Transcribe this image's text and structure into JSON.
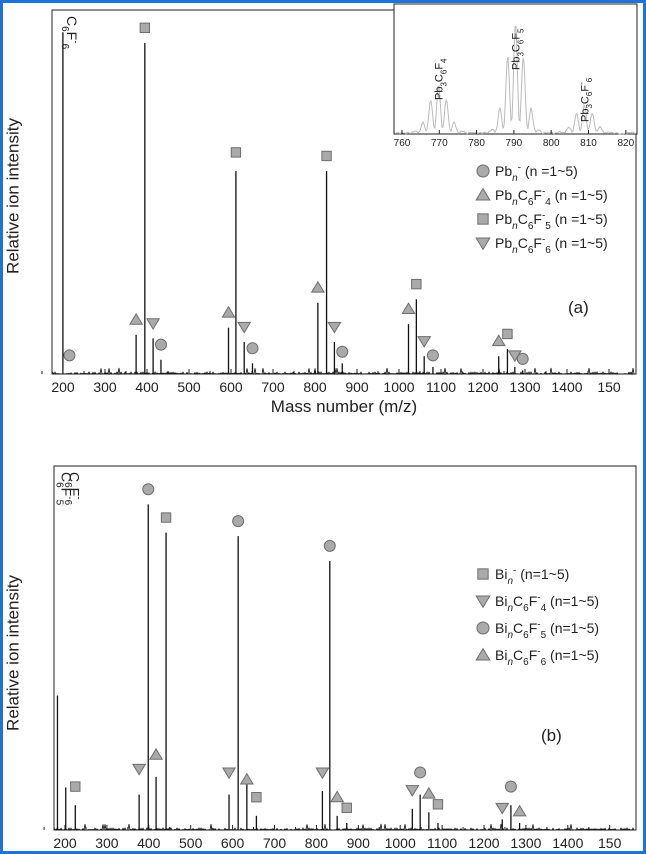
{
  "colors": {
    "border": "#1e73d8",
    "axis": "#222222",
    "line": "#111111",
    "marker_fill": "#aaaaaa",
    "marker_stroke": "#6e6e6e",
    "inset_line": "#bbbbbb"
  },
  "chart_data": [
    {
      "type": "line",
      "panel_label": "(a)",
      "xlabel": "Mass number (m/z)",
      "ylabel": "Relative ion intensity",
      "xlim": [
        160,
        1500
      ],
      "ylim": [
        0,
        100
      ],
      "x_ticks": [
        "200",
        "300",
        "400",
        "500",
        "600",
        "700",
        "800",
        "900",
        "1000",
        "1100",
        "1200",
        "1300",
        "1400",
        "150"
      ],
      "peaks": [
        {
          "x": 185,
          "y": 96
        },
        {
          "x": 353,
          "y": 11
        },
        {
          "x": 373,
          "y": 93
        },
        {
          "x": 392,
          "y": 10
        },
        {
          "x": 410,
          "y": 4
        },
        {
          "x": 565,
          "y": 13
        },
        {
          "x": 582,
          "y": 57
        },
        {
          "x": 601,
          "y": 9
        },
        {
          "x": 620,
          "y": 3
        },
        {
          "x": 770,
          "y": 20
        },
        {
          "x": 790,
          "y": 57
        },
        {
          "x": 808,
          "y": 9
        },
        {
          "x": 826,
          "y": 3
        },
        {
          "x": 978,
          "y": 14
        },
        {
          "x": 996,
          "y": 21
        },
        {
          "x": 1014,
          "y": 5
        },
        {
          "x": 1034,
          "y": 2
        },
        {
          "x": 1185,
          "y": 5
        },
        {
          "x": 1205,
          "y": 7
        },
        {
          "x": 1222,
          "y": 2
        },
        {
          "x": 1240,
          "y": 1
        }
      ],
      "peak_labels": [
        {
          "x": 185,
          "text_main": "C",
          "sub1": "6",
          "text_mid": "F",
          "sup": "-",
          "sub2": "6"
        }
      ],
      "markers": [
        {
          "series": "Pbn",
          "x": 200,
          "y": 3
        },
        {
          "series": "PbnC6F4",
          "x": 353,
          "y": 13
        },
        {
          "series": "PbnC6F6",
          "x": 392,
          "y": 12
        },
        {
          "series": "Pbn",
          "x": 410,
          "y": 6
        },
        {
          "series": "PbnC6F5",
          "x": 373,
          "y": 95
        },
        {
          "series": "PbnC6F4",
          "x": 565,
          "y": 15
        },
        {
          "series": "PbnC6F5",
          "x": 582,
          "y": 60
        },
        {
          "series": "PbnC6F6",
          "x": 601,
          "y": 11
        },
        {
          "series": "Pbn",
          "x": 620,
          "y": 5
        },
        {
          "series": "PbnC6F4",
          "x": 770,
          "y": 22
        },
        {
          "series": "PbnC6F5",
          "x": 790,
          "y": 59
        },
        {
          "series": "PbnC6F6",
          "x": 808,
          "y": 11
        },
        {
          "series": "Pbn",
          "x": 826,
          "y": 4
        },
        {
          "series": "PbnC6F4",
          "x": 978,
          "y": 16
        },
        {
          "series": "PbnC6F5",
          "x": 996,
          "y": 23
        },
        {
          "series": "PbnC6F6",
          "x": 1014,
          "y": 7
        },
        {
          "series": "Pbn",
          "x": 1034,
          "y": 3
        },
        {
          "series": "PbnC6F4",
          "x": 1185,
          "y": 7
        },
        {
          "series": "PbnC6F5",
          "x": 1205,
          "y": 9
        },
        {
          "series": "PbnC6F6",
          "x": 1222,
          "y": 3
        },
        {
          "series": "Pbn",
          "x": 1240,
          "y": 2
        }
      ],
      "legend": [
        {
          "key": "Pbn",
          "shape": "circle",
          "base": "Pb",
          "sub": "n",
          "sup": "-",
          "mid": "",
          "sub2": "",
          "mid2": "",
          "sub3": "",
          "sup2": "",
          "range": "(n =1~5)"
        },
        {
          "key": "PbnC6F4",
          "shape": "triangle-up",
          "base": "Pb",
          "sub": "n",
          "sup": "",
          "mid": "C",
          "sub2": "6",
          "mid2": "F",
          "sub3": "4",
          "sup2": "-",
          "range": "(n =1~5)"
        },
        {
          "key": "PbnC6F5",
          "shape": "square",
          "base": "Pb",
          "sub": "n",
          "sup": "",
          "mid": "C",
          "sub2": "6",
          "mid2": "F",
          "sub3": "5",
          "sup2": "-",
          "range": "(n =1~5)"
        },
        {
          "key": "PbnC6F6",
          "shape": "triangle-down",
          "base": "Pb",
          "sub": "n",
          "sup": "",
          "mid": "C",
          "sub2": "6",
          "mid2": "F",
          "sub3": "6",
          "sup2": "-",
          "range": "(n =1~5)"
        }
      ],
      "inset": {
        "xlim": [
          760,
          820
        ],
        "x_ticks": [
          "760",
          "770",
          "780",
          "790",
          "800",
          "810",
          "820"
        ],
        "peaks": [
          {
            "x": 771,
            "y": 40
          },
          {
            "x": 790,
            "y": 92
          },
          {
            "x": 807,
            "y": 24
          }
        ],
        "labels": [
          {
            "x": 771,
            "base": "Pb",
            "sub": "3",
            "mid": "C",
            "sub2": "6",
            "mid2": "F",
            "sub3": "4"
          },
          {
            "x": 790,
            "base": "Pb",
            "sub": "3",
            "mid": "C",
            "sub2": "6",
            "mid2": "F",
            "sub3": "5"
          },
          {
            "x": 807,
            "base": "Pb",
            "sub": "3",
            "mid": "C",
            "sub2": "6",
            "mid2": "F",
            "sub3": "6",
            "sup": "-"
          }
        ]
      }
    },
    {
      "type": "line",
      "panel_label": "(b)",
      "xlabel": "Mass number (m/z)",
      "ylabel": "Relative ion intensity",
      "xlim": [
        160,
        1500
      ],
      "ylim": [
        0,
        100
      ],
      "x_ticks": [
        "200",
        "300",
        "400",
        "500",
        "600",
        "700",
        "800",
        "900",
        "1000",
        "1100",
        "1200",
        "1300",
        "1400",
        "150"
      ],
      "peaks": [
        {
          "x": 168,
          "y": 38
        },
        {
          "x": 187,
          "y": 12
        },
        {
          "x": 209,
          "y": 7
        },
        {
          "x": 356,
          "y": 10
        },
        {
          "x": 377,
          "y": 92
        },
        {
          "x": 395,
          "y": 15
        },
        {
          "x": 418,
          "y": 84
        },
        {
          "x": 563,
          "y": 10
        },
        {
          "x": 584,
          "y": 83
        },
        {
          "x": 604,
          "y": 13
        },
        {
          "x": 626,
          "y": 4
        },
        {
          "x": 778,
          "y": 11
        },
        {
          "x": 795,
          "y": 76
        },
        {
          "x": 812,
          "y": 4
        },
        {
          "x": 834,
          "y": 2
        },
        {
          "x": 985,
          "y": 6
        },
        {
          "x": 1003,
          "y": 10
        },
        {
          "x": 1023,
          "y": 5
        },
        {
          "x": 1044,
          "y": 2
        },
        {
          "x": 1192,
          "y": 3
        },
        {
          "x": 1212,
          "y": 7
        },
        {
          "x": 1232,
          "y": 2
        }
      ],
      "peak_labels": [
        {
          "x": 168,
          "text_main": "C",
          "sub1": "6",
          "text_mid": "F",
          "sup": "-",
          "sub2": "5"
        },
        {
          "x": 187,
          "text_main": "C",
          "sub1": "6",
          "text_mid": "F",
          "sup": "-",
          "sub2": "6"
        }
      ],
      "markers": [
        {
          "series": "Bin",
          "x": 209,
          "y": 10
        },
        {
          "series": "BinC6F4",
          "x": 356,
          "y": 15
        },
        {
          "series": "BinC6F5",
          "x": 377,
          "y": 94
        },
        {
          "series": "BinC6F6",
          "x": 395,
          "y": 19
        },
        {
          "series": "Bin",
          "x": 418,
          "y": 86
        },
        {
          "series": "BinC6F4",
          "x": 563,
          "y": 14
        },
        {
          "series": "BinC6F5",
          "x": 584,
          "y": 85
        },
        {
          "series": "BinC6F6",
          "x": 604,
          "y": 12
        },
        {
          "series": "Bin",
          "x": 626,
          "y": 7
        },
        {
          "series": "BinC6F4",
          "x": 778,
          "y": 14
        },
        {
          "series": "BinC6F5",
          "x": 795,
          "y": 78
        },
        {
          "series": "BinC6F6",
          "x": 812,
          "y": 7
        },
        {
          "series": "Bin",
          "x": 834,
          "y": 4
        },
        {
          "series": "BinC6F4",
          "x": 985,
          "y": 9
        },
        {
          "series": "BinC6F5",
          "x": 1003,
          "y": 14
        },
        {
          "series": "BinC6F6",
          "x": 1023,
          "y": 8
        },
        {
          "series": "Bin",
          "x": 1044,
          "y": 5
        },
        {
          "series": "BinC6F4",
          "x": 1192,
          "y": 4
        },
        {
          "series": "BinC6F5",
          "x": 1212,
          "y": 10
        },
        {
          "series": "BinC6F6",
          "x": 1232,
          "y": 3
        }
      ],
      "legend": [
        {
          "key": "Bin",
          "shape": "square",
          "base": "Bi",
          "sub": "n",
          "sup": "-",
          "mid": "",
          "sub2": "",
          "mid2": "",
          "sub3": "",
          "sup2": "",
          "range": " (n=1~5)"
        },
        {
          "key": "BinC6F4",
          "shape": "triangle-down",
          "base": "Bi",
          "sub": "n",
          "sup": "",
          "mid": "C",
          "sub2": "6",
          "mid2": "F",
          "sub3": "4",
          "sup2": "-",
          "range": "(n=1~5)"
        },
        {
          "key": "BinC6F5",
          "shape": "circle",
          "base": "Bi",
          "sub": "n",
          "sup": "",
          "mid": "C",
          "sub2": "6",
          "mid2": "F",
          "sub3": "5",
          "sup2": "-",
          "range": "(n=1~5)"
        },
        {
          "key": "BinC6F6",
          "shape": "triangle-up",
          "base": "Bi",
          "sub": "n",
          "sup": "",
          "mid": "C",
          "sub2": "6",
          "mid2": "F",
          "sub3": "6",
          "sup2": "-",
          "range": "(n=1~5)"
        }
      ]
    }
  ]
}
